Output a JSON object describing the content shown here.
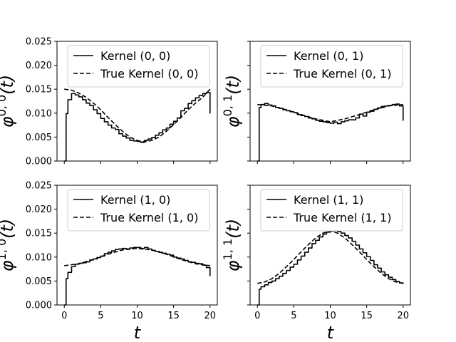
{
  "chart_data": [
    {
      "type": "line",
      "ylabel": {
        "base": "φ",
        "sup": "0, 0",
        "arg": "(t)"
      },
      "xlabel": "",
      "xlim": [
        -1,
        21
      ],
      "ylim": [
        0,
        0.025
      ],
      "yticks": [
        "0.000",
        "0.005",
        "0.010",
        "0.015",
        "0.020",
        "0.025"
      ],
      "xticks": [],
      "legend": "top-center",
      "series": [
        {
          "name": "Kernel (0, 0)",
          "style": "solid",
          "step": true,
          "x": [
            0,
            0.25,
            0.5,
            1,
            1.5,
            2,
            2.5,
            3,
            3.5,
            4,
            4.5,
            5,
            5.5,
            6,
            6.5,
            7,
            7.5,
            8,
            8.5,
            9,
            9.5,
            10,
            10.5,
            11,
            11.5,
            12,
            12.5,
            13,
            13.5,
            14,
            14.5,
            15,
            15.5,
            16,
            16.5,
            17,
            17.5,
            18,
            18.5,
            19,
            19.5,
            20
          ],
          "y": [
            0.0,
            0.0099,
            0.0128,
            0.0141,
            0.0138,
            0.0134,
            0.0128,
            0.0121,
            0.0116,
            0.0107,
            0.0099,
            0.0089,
            0.0082,
            0.0075,
            0.0069,
            0.0066,
            0.0057,
            0.0052,
            0.0048,
            0.0043,
            0.0042,
            0.0041,
            0.0039,
            0.0043,
            0.0046,
            0.0049,
            0.0054,
            0.0059,
            0.0065,
            0.0069,
            0.0077,
            0.0083,
            0.009,
            0.0105,
            0.011,
            0.012,
            0.0126,
            0.0132,
            0.0137,
            0.0141,
            0.0143,
            0.0099
          ]
        },
        {
          "name": "True Kernel (0, 0)",
          "style": "dashed",
          "step": false,
          "x": [
            0,
            1,
            2,
            3,
            4,
            5,
            6,
            7,
            8,
            9,
            10,
            11,
            12,
            13,
            14,
            15,
            16,
            17,
            18,
            19,
            20
          ],
          "y": [
            0.015,
            0.0148,
            0.0142,
            0.0133,
            0.0121,
            0.0107,
            0.0091,
            0.0076,
            0.0062,
            0.005,
            0.0043,
            0.004,
            0.0043,
            0.005,
            0.0062,
            0.0076,
            0.0091,
            0.0107,
            0.0121,
            0.0133,
            0.015
          ]
        }
      ]
    },
    {
      "type": "line",
      "ylabel": {
        "base": "φ",
        "sup": "0, 1",
        "arg": "(t)"
      },
      "xlabel": "",
      "xlim": [
        -1,
        21
      ],
      "ylim": [
        0,
        0.025
      ],
      "yticks": [],
      "xticks": [],
      "legend": "top-center",
      "series": [
        {
          "name": "Kernel (0, 1)",
          "style": "solid",
          "step": true,
          "x": [
            0,
            0.25,
            0.5,
            1,
            1.5,
            2,
            2.5,
            3,
            3.5,
            4,
            4.5,
            5,
            5.5,
            6,
            6.5,
            7,
            7.5,
            8,
            8.5,
            9,
            9.5,
            10,
            10.5,
            11,
            11.5,
            12,
            12.5,
            13,
            13.5,
            14,
            14.5,
            15,
            15.5,
            16,
            16.5,
            17,
            17.5,
            18,
            18.5,
            19,
            19.5,
            20
          ],
          "y": [
            0.0,
            0.0112,
            0.0118,
            0.012,
            0.0117,
            0.0115,
            0.0112,
            0.011,
            0.0107,
            0.0105,
            0.0103,
            0.0101,
            0.0097,
            0.0095,
            0.0093,
            0.009,
            0.0088,
            0.0085,
            0.0083,
            0.0082,
            0.008,
            0.0079,
            0.0081,
            0.0078,
            0.0082,
            0.0084,
            0.0086,
            0.0086,
            0.009,
            0.0098,
            0.0094,
            0.0102,
            0.0104,
            0.0108,
            0.0111,
            0.0114,
            0.0115,
            0.0116,
            0.0118,
            0.0119,
            0.0115,
            0.0084
          ]
        },
        {
          "name": "True Kernel (0, 1)",
          "style": "dashed",
          "step": false,
          "x": [
            0,
            2,
            4,
            6,
            8,
            10,
            12,
            14,
            16,
            18,
            20
          ],
          "y": [
            0.0118,
            0.0115,
            0.0107,
            0.0097,
            0.0088,
            0.0082,
            0.0088,
            0.0097,
            0.0107,
            0.0115,
            0.0118
          ]
        }
      ]
    },
    {
      "type": "line",
      "ylabel": {
        "base": "φ",
        "sup": "1, 0",
        "arg": "(t)"
      },
      "xlabel": "t",
      "xlim": [
        -1,
        21
      ],
      "ylim": [
        0,
        0.025
      ],
      "yticks": [
        "0.000",
        "0.005",
        "0.010",
        "0.015",
        "0.020",
        "0.025"
      ],
      "xticks": [
        "0",
        "5",
        "10",
        "15",
        "20"
      ],
      "legend": "top-center",
      "series": [
        {
          "name": "Kernel (1, 0)",
          "style": "solid",
          "step": true,
          "x": [
            0,
            0.25,
            0.5,
            1,
            1.5,
            2,
            2.5,
            3,
            3.5,
            4,
            4.5,
            5,
            5.5,
            6,
            6.5,
            7,
            7.5,
            8,
            8.5,
            9,
            9.5,
            10,
            10.5,
            11,
            11.5,
            12,
            12.5,
            13,
            13.5,
            14,
            14.5,
            15,
            15.5,
            16,
            16.5,
            17,
            17.5,
            18,
            18.5,
            19,
            19.5,
            20
          ],
          "y": [
            0.0,
            0.0055,
            0.0068,
            0.008,
            0.0085,
            0.0087,
            0.0088,
            0.009,
            0.0094,
            0.0096,
            0.0099,
            0.0102,
            0.0107,
            0.011,
            0.0113,
            0.0116,
            0.0117,
            0.0118,
            0.0117,
            0.0119,
            0.012,
            0.012,
            0.0118,
            0.012,
            0.0117,
            0.0114,
            0.0112,
            0.011,
            0.0108,
            0.0106,
            0.0104,
            0.01,
            0.0098,
            0.0096,
            0.0093,
            0.009,
            0.0089,
            0.0087,
            0.0086,
            0.0083,
            0.0078,
            0.006
          ]
        },
        {
          "name": "True Kernel (1, 0)",
          "style": "dashed",
          "step": false,
          "x": [
            0,
            2,
            4,
            6,
            8,
            10,
            12,
            14,
            16,
            18,
            20
          ],
          "y": [
            0.0082,
            0.0086,
            0.0095,
            0.0106,
            0.0115,
            0.0118,
            0.0115,
            0.0106,
            0.0095,
            0.0086,
            0.0082
          ]
        }
      ]
    },
    {
      "type": "line",
      "ylabel": {
        "base": "φ",
        "sup": "1, 1",
        "arg": "(t)"
      },
      "xlabel": "t",
      "xlim": [
        -1,
        21
      ],
      "ylim": [
        0,
        0.025
      ],
      "yticks": [],
      "xticks": [
        "0",
        "5",
        "10",
        "15",
        "20"
      ],
      "legend": "top-center",
      "series": [
        {
          "name": "Kernel (1, 1)",
          "style": "solid",
          "step": true,
          "x": [
            0,
            0.25,
            0.5,
            1,
            1.5,
            2,
            2.5,
            3,
            3.5,
            4,
            4.5,
            5,
            5.5,
            6,
            6.5,
            7,
            7.5,
            8,
            8.5,
            9,
            9.5,
            10,
            10.5,
            11,
            11.5,
            12,
            12.5,
            13,
            13.5,
            14,
            14.5,
            15,
            15.5,
            16,
            16.5,
            17,
            17.5,
            18,
            18.5,
            19,
            19.5,
            20
          ],
          "y": [
            0.0,
            0.0033,
            0.0038,
            0.0042,
            0.0047,
            0.005,
            0.0055,
            0.006,
            0.0066,
            0.0072,
            0.0079,
            0.0085,
            0.0094,
            0.0102,
            0.011,
            0.0119,
            0.0128,
            0.0135,
            0.0142,
            0.0148,
            0.0152,
            0.0154,
            0.0155,
            0.0153,
            0.015,
            0.0145,
            0.014,
            0.0133,
            0.0125,
            0.0117,
            0.0109,
            0.0101,
            0.0093,
            0.0084,
            0.0077,
            0.0069,
            0.0063,
            0.0058,
            0.0053,
            0.0049,
            0.0046,
            0.0044
          ]
        },
        {
          "name": "True Kernel (1, 1)",
          "style": "dashed",
          "step": false,
          "x": [
            0,
            1,
            2,
            3,
            4,
            5,
            6,
            7,
            8,
            9,
            10,
            11,
            12,
            13,
            14,
            15,
            16,
            17,
            18,
            19,
            20
          ],
          "y": [
            0.0045,
            0.0048,
            0.0055,
            0.0066,
            0.008,
            0.0095,
            0.0111,
            0.0126,
            0.014,
            0.015,
            0.0155,
            0.015,
            0.014,
            0.0126,
            0.0111,
            0.0095,
            0.008,
            0.0066,
            0.0055,
            0.0048,
            0.0045
          ]
        }
      ]
    }
  ]
}
